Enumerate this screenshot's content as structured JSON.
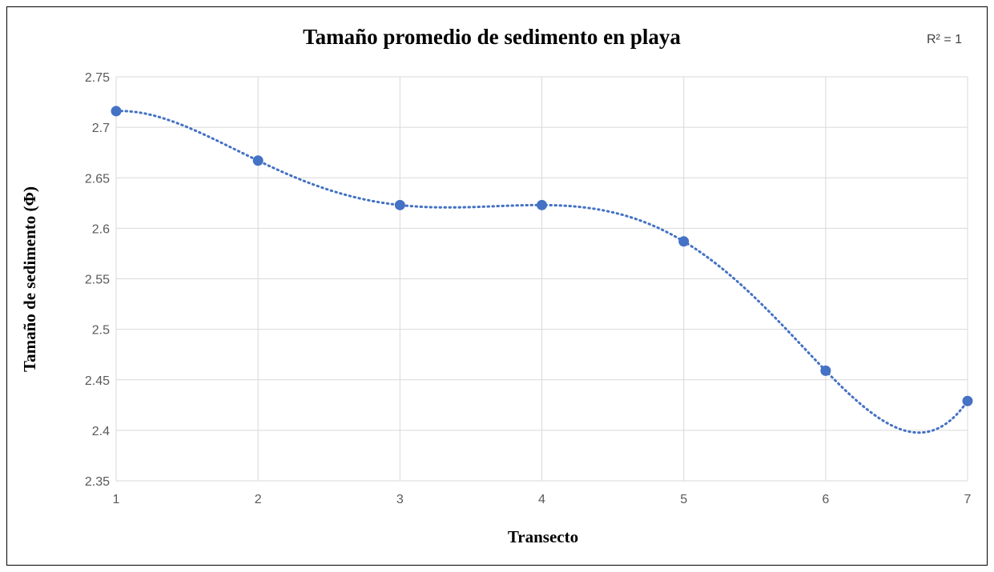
{
  "chart_data": {
    "type": "scatter",
    "title": "Tamaño promedio de sedimento en playa",
    "xlabel": "Transecto",
    "ylabel": "Tamaño de sedimento (Φ)",
    "annotation": "R² = 1",
    "xlim": [
      1,
      7
    ],
    "ylim": [
      2.35,
      2.75
    ],
    "x_ticks": [
      "1",
      "2",
      "3",
      "4",
      "5",
      "6",
      "7"
    ],
    "y_ticks": [
      "2.35",
      "2.4",
      "2.45",
      "2.5",
      "2.55",
      "2.6",
      "2.65",
      "2.7",
      "2.75"
    ],
    "grid": true,
    "trendline": "polynomial",
    "series": [
      {
        "x": [
          1,
          2,
          3,
          4,
          5,
          6,
          7
        ],
        "y": [
          2.716,
          2.667,
          2.623,
          2.623,
          2.587,
          2.459,
          2.429
        ],
        "color": "#4472c4"
      }
    ]
  }
}
